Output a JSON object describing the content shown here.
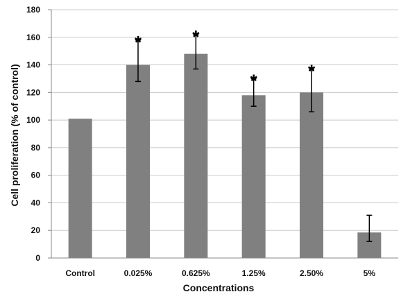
{
  "chart_data": {
    "type": "bar",
    "title": "",
    "xlabel": "Concentrations",
    "ylabel": "Cell proliferation (% of control)",
    "ylim": [
      0,
      180
    ],
    "yticks": [
      0,
      20,
      40,
      60,
      80,
      100,
      120,
      140,
      160,
      180
    ],
    "grid": true,
    "legend": "none",
    "categories": [
      "Control",
      "0.025%",
      "0.625%",
      "1.25%",
      "2.50%",
      "5%"
    ],
    "values": [
      101,
      140,
      148,
      118,
      120,
      18.5
    ],
    "error_low": [
      101,
      128,
      137,
      110,
      106,
      12
    ],
    "error_high": [
      101,
      158,
      162,
      130,
      137,
      31
    ],
    "annotations": [
      "",
      "*",
      "*",
      "*",
      "*",
      ""
    ],
    "colors": {
      "bar": "#808080",
      "grid": "#c8c8c8",
      "axis": "#888888",
      "error": "#000000"
    }
  }
}
